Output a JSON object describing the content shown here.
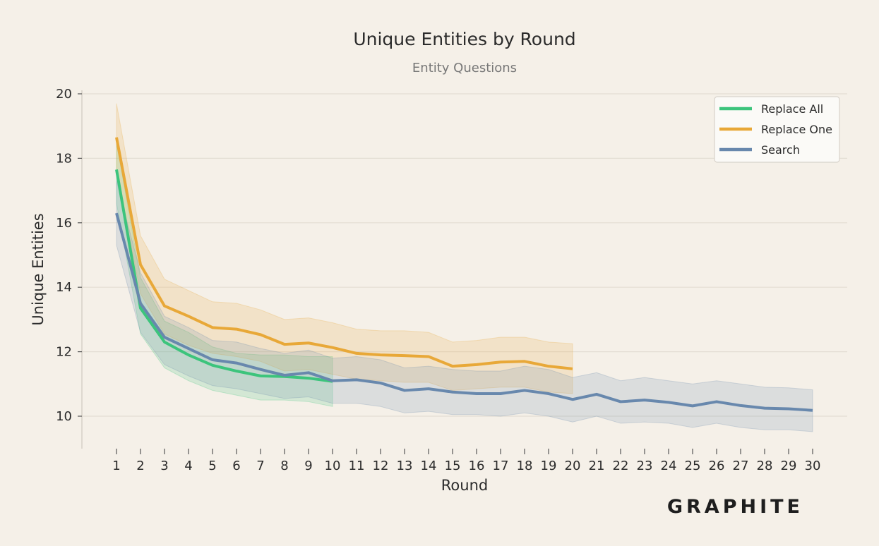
{
  "brand": "GRAPHITE",
  "chart_data": {
    "type": "line",
    "title": "Unique Entities by Round",
    "subtitle": "Entity Questions",
    "xlabel": "Round",
    "ylabel": "Unique Entities",
    "ylim": [
      9.0,
      20.2
    ],
    "yticks": [
      10,
      12,
      14,
      16,
      18,
      20
    ],
    "x": [
      1,
      2,
      3,
      4,
      5,
      6,
      7,
      8,
      9,
      10,
      11,
      12,
      13,
      14,
      15,
      16,
      17,
      18,
      19,
      20,
      21,
      22,
      23,
      24,
      25,
      26,
      27,
      28,
      29,
      30
    ],
    "grid": "horizontal",
    "legend_position": "top-right",
    "series": [
      {
        "name": "Replace All",
        "color": "#3cc47c",
        "x": [
          1,
          2,
          3,
          4,
          5,
          6,
          7,
          8,
          9,
          10
        ],
        "values": [
          17.65,
          13.35,
          12.3,
          11.9,
          11.58,
          11.4,
          11.25,
          11.23,
          11.18,
          11.08
        ],
        "upper": [
          18.5,
          14.3,
          12.95,
          12.6,
          12.15,
          11.95,
          11.9,
          11.9,
          11.85,
          11.85
        ],
        "lower": [
          16.6,
          12.55,
          11.5,
          11.1,
          10.8,
          10.65,
          10.5,
          10.5,
          10.45,
          10.3
        ]
      },
      {
        "name": "Replace One",
        "color": "#e8a838",
        "x": [
          1,
          2,
          3,
          4,
          5,
          6,
          7,
          8,
          9,
          10,
          11,
          12,
          13,
          14,
          15,
          16,
          17,
          18,
          19,
          20
        ],
        "values": [
          18.65,
          14.7,
          13.42,
          13.1,
          12.75,
          12.7,
          12.53,
          12.23,
          12.27,
          12.13,
          11.95,
          11.9,
          11.88,
          11.85,
          11.55,
          11.6,
          11.68,
          11.7,
          11.55,
          11.47
        ],
        "upper": [
          19.7,
          15.6,
          14.25,
          13.9,
          13.55,
          13.5,
          13.3,
          13.0,
          13.05,
          12.9,
          12.7,
          12.65,
          12.65,
          12.6,
          12.3,
          12.35,
          12.45,
          12.45,
          12.3,
          12.25
        ],
        "lower": [
          17.6,
          13.8,
          12.55,
          12.2,
          11.95,
          11.85,
          11.7,
          11.4,
          11.45,
          11.3,
          11.15,
          11.1,
          11.05,
          11.05,
          10.8,
          10.85,
          10.9,
          10.9,
          10.75,
          10.7
        ]
      },
      {
        "name": "Search",
        "color": "#6888ad",
        "x": [
          1,
          2,
          3,
          4,
          5,
          6,
          7,
          8,
          9,
          10,
          11,
          12,
          13,
          14,
          15,
          16,
          17,
          18,
          19,
          20,
          21,
          22,
          23,
          24,
          25,
          26,
          27,
          28,
          29,
          30
        ],
        "values": [
          16.3,
          13.5,
          12.45,
          12.1,
          11.75,
          11.65,
          11.45,
          11.27,
          11.35,
          11.1,
          11.13,
          11.03,
          10.8,
          10.85,
          10.75,
          10.7,
          10.7,
          10.8,
          10.7,
          10.52,
          10.68,
          10.45,
          10.5,
          10.43,
          10.32,
          10.45,
          10.33,
          10.25,
          10.23,
          10.18
        ],
        "upper": [
          17.3,
          14.45,
          13.1,
          12.75,
          12.35,
          12.3,
          12.1,
          11.95,
          12.05,
          11.8,
          11.85,
          11.75,
          11.5,
          11.55,
          11.45,
          11.4,
          11.4,
          11.55,
          11.45,
          11.2,
          11.35,
          11.1,
          11.2,
          11.1,
          11.0,
          11.1,
          11.0,
          10.9,
          10.88,
          10.82
        ],
        "lower": [
          15.3,
          12.6,
          11.6,
          11.25,
          10.95,
          10.85,
          10.7,
          10.55,
          10.6,
          10.4,
          10.4,
          10.3,
          10.1,
          10.15,
          10.05,
          10.05,
          10.0,
          10.1,
          10.0,
          9.82,
          10.0,
          9.78,
          9.82,
          9.78,
          9.65,
          9.78,
          9.65,
          9.58,
          9.58,
          9.52
        ]
      }
    ]
  }
}
